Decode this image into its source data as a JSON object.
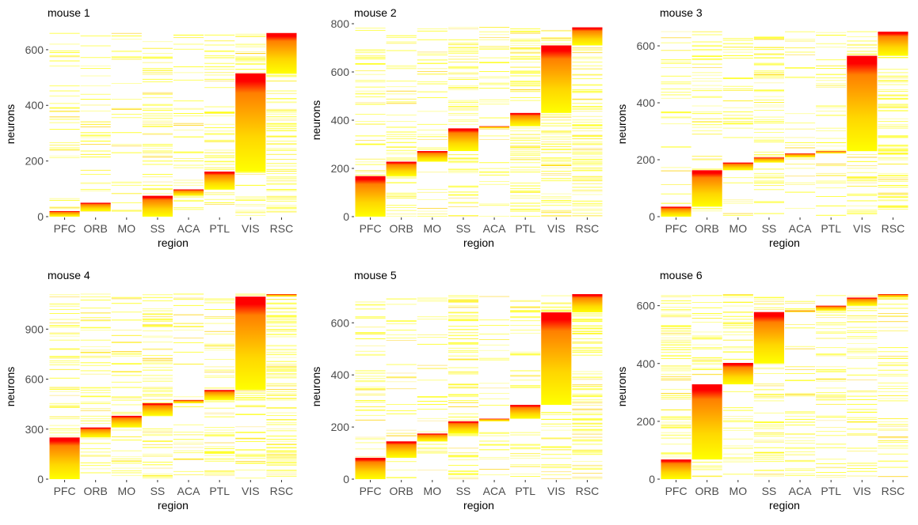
{
  "chart_data": [
    {
      "type": "heatmap",
      "title": "mouse 1",
      "xlabel": "region",
      "ylabel": "neurons",
      "categories": [
        "PFC",
        "ORB",
        "MO",
        "SS",
        "ACA",
        "PTL",
        "VIS",
        "RSC"
      ],
      "ylim": [
        0,
        665
      ],
      "yticks": [
        0,
        200,
        400,
        600
      ],
      "active_neurons": [
        20,
        50,
        0,
        75,
        98,
        162,
        515,
        660
      ],
      "total_neurons": 660,
      "gradient_colors": [
        "#ffff00",
        "#ffd700",
        "#ff7f00",
        "#ff0000"
      ],
      "density": [
        0.15,
        0.12,
        0.12,
        0.22,
        0.12,
        0.22,
        0.3,
        0.35
      ]
    },
    {
      "type": "heatmap",
      "title": "mouse 2",
      "xlabel": "region",
      "ylabel": "neurons",
      "categories": [
        "PFC",
        "ORB",
        "MO",
        "SS",
        "ACA",
        "PTL",
        "VIS",
        "RSC"
      ],
      "ylim": [
        0,
        800
      ],
      "yticks": [
        0,
        200,
        400,
        600,
        800
      ],
      "active_neurons": [
        168,
        228,
        272,
        366,
        375,
        430,
        710,
        785
      ],
      "total_neurons": 785,
      "gradient_colors": [
        "#ffff00",
        "#ffd700",
        "#ff7f00",
        "#ff0000"
      ],
      "density": [
        0.15,
        0.15,
        0.15,
        0.3,
        0.12,
        0.28,
        0.3,
        0.35
      ]
    },
    {
      "type": "heatmap",
      "title": "mouse 3",
      "xlabel": "region",
      "ylabel": "neurons",
      "categories": [
        "PFC",
        "ORB",
        "MO",
        "SS",
        "ACA",
        "PTL",
        "VIS",
        "RSC"
      ],
      "ylim": [
        0,
        650
      ],
      "yticks": [
        0,
        200,
        400,
        600
      ],
      "active_neurons": [
        35,
        163,
        190,
        208,
        222,
        230,
        565,
        650
      ],
      "total_neurons": 650,
      "gradient_colors": [
        "#ffff00",
        "#ffd700",
        "#ff7f00",
        "#ff0000"
      ],
      "density": [
        0.15,
        0.18,
        0.15,
        0.25,
        0.12,
        0.18,
        0.35,
        0.35
      ]
    },
    {
      "type": "heatmap",
      "title": "mouse 4",
      "xlabel": "region",
      "ylabel": "neurons",
      "categories": [
        "PFC",
        "ORB",
        "MO",
        "SS",
        "ACA",
        "PTL",
        "VIS",
        "RSC"
      ],
      "ylim": [
        0,
        1110
      ],
      "yticks": [
        0,
        300,
        600,
        900
      ],
      "active_neurons": [
        250,
        310,
        380,
        455,
        475,
        535,
        1095,
        1110
      ],
      "total_neurons": 1110,
      "gradient_colors": [
        "#ffff00",
        "#ffd700",
        "#ff7f00",
        "#ff0000"
      ],
      "density": [
        0.18,
        0.15,
        0.15,
        0.25,
        0.12,
        0.22,
        0.3,
        0.35
      ]
    },
    {
      "type": "heatmap",
      "title": "mouse 5",
      "xlabel": "region",
      "ylabel": "neurons",
      "categories": [
        "PFC",
        "ORB",
        "MO",
        "SS",
        "ACA",
        "PTL",
        "VIS",
        "RSC"
      ],
      "ylim": [
        0,
        710
      ],
      "yticks": [
        0,
        200,
        400,
        600
      ],
      "active_neurons": [
        82,
        145,
        175,
        222,
        232,
        285,
        640,
        710
      ],
      "total_neurons": 710,
      "gradient_colors": [
        "#ffff00",
        "#ffd700",
        "#ff7f00",
        "#ff0000"
      ],
      "density": [
        0.2,
        0.18,
        0.15,
        0.28,
        0.12,
        0.22,
        0.3,
        0.35
      ]
    },
    {
      "type": "heatmap",
      "title": "mouse 6",
      "xlabel": "region",
      "ylabel": "neurons",
      "categories": [
        "PFC",
        "ORB",
        "MO",
        "SS",
        "ACA",
        "PTL",
        "VIS",
        "RSC"
      ],
      "ylim": [
        0,
        640
      ],
      "yticks": [
        0,
        200,
        400,
        600
      ],
      "active_neurons": [
        68,
        328,
        402,
        578,
        583,
        600,
        628,
        640
      ],
      "total_neurons": 640,
      "gradient_colors": [
        "#ffff00",
        "#ffd700",
        "#ff7f00",
        "#ff0000"
      ],
      "density": [
        0.25,
        0.2,
        0.18,
        0.25,
        0.12,
        0.15,
        0.15,
        0.15
      ]
    }
  ]
}
